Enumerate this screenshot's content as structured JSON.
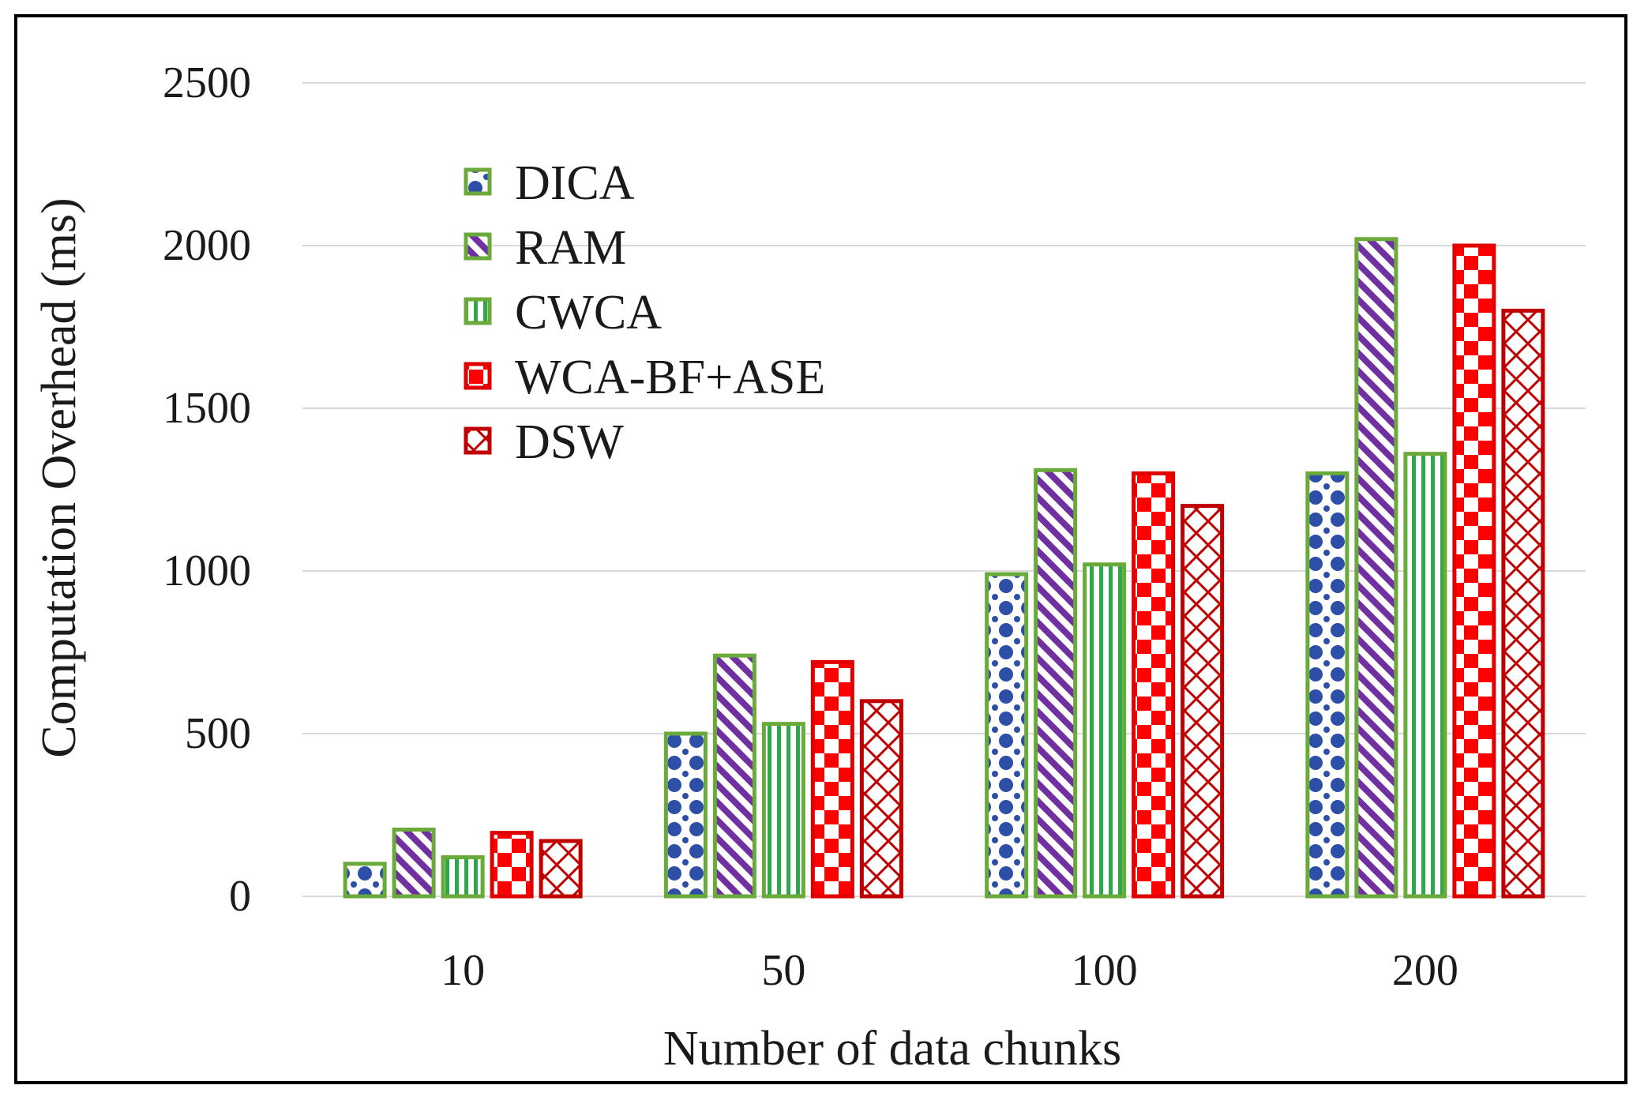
{
  "chart_data": {
    "type": "bar",
    "title": "",
    "xlabel": "Number of data chunks",
    "ylabel": "Computation Overhead (ms)",
    "ylim": [
      0,
      2500
    ],
    "yticks": [
      0,
      500,
      1000,
      1500,
      2000,
      2500
    ],
    "grid": true,
    "legend_position": "top-left",
    "categories": [
      "10",
      "50",
      "100",
      "200"
    ],
    "series": [
      {
        "name": "DICA",
        "values": [
          100,
          500,
          990,
          1300
        ],
        "fill": "#2e4fa8",
        "stroke": "#6aaa3a",
        "pattern": "dots"
      },
      {
        "name": "RAM",
        "values": [
          205,
          740,
          1310,
          2020
        ],
        "fill": "#7030a0",
        "stroke": "#6aaa3a",
        "pattern": "diagonal"
      },
      {
        "name": "CWCA",
        "values": [
          120,
          530,
          1020,
          1360
        ],
        "fill": "#2ea84a",
        "stroke": "#6aaa3a",
        "pattern": "vertical"
      },
      {
        "name": "WCA-BF+ASE",
        "values": [
          195,
          720,
          1300,
          2000
        ],
        "fill": "#ff0000",
        "stroke": "#e00000",
        "pattern": "checker"
      },
      {
        "name": "DSW",
        "values": [
          170,
          600,
          1200,
          1800
        ],
        "fill": "#c00000",
        "stroke": "#c00000",
        "pattern": "cross"
      }
    ]
  }
}
